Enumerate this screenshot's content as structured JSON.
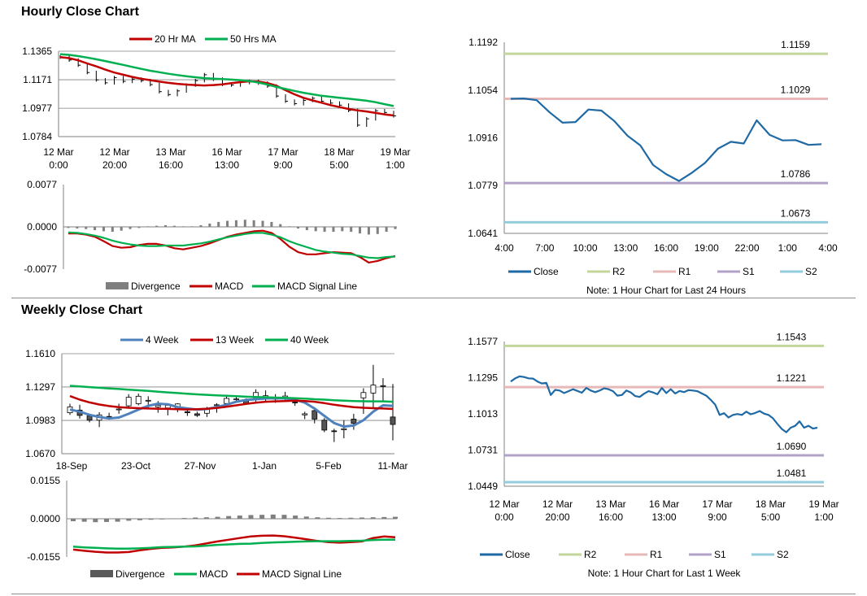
{
  "sections": {
    "hourly_title": "Hourly Close Chart",
    "weekly_title": "Weekly Close Chart"
  },
  "colors": {
    "ma20": "#c00000",
    "ma50": "#00b050",
    "close": "#1f6aa5",
    "r2": "#c3d69b",
    "r1": "#e6b9b8",
    "s1": "#b3a2c7",
    "s2": "#93cddd",
    "divergence": "#7f7f7f",
    "wk4": "#4f81bd",
    "wk13": "#c00000",
    "wk40": "#00b050",
    "candle": "#000000"
  },
  "chart_data": [
    {
      "id": "hourly_price",
      "type": "line",
      "title": "",
      "legend": [
        "20 Hr MA",
        "50 Hrs MA"
      ],
      "legend_position": "top",
      "yticks": [
        "1.1365",
        "1.1171",
        "1.0977",
        "1.0784"
      ],
      "ylim": [
        1.0784,
        1.1365
      ],
      "xtick_labels": [
        [
          "12 Mar",
          "0:00"
        ],
        [
          "12 Mar",
          "20:00"
        ],
        [
          "13 Mar",
          "16:00"
        ],
        [
          "16 Mar",
          "13:00"
        ],
        [
          "17 Mar",
          "9:00"
        ],
        [
          "18 Mar",
          "5:00"
        ],
        [
          "19 Mar",
          "1:00"
        ]
      ],
      "grid": true,
      "series": [
        {
          "name": "20 Hr MA",
          "values": [
            1.1325,
            1.1318,
            1.1303,
            1.1282,
            1.1262,
            1.124,
            1.122,
            1.1205,
            1.119,
            1.1178,
            1.1168,
            1.1158,
            1.115,
            1.1143,
            1.1138,
            1.1135,
            1.1132,
            1.1135,
            1.114,
            1.1148,
            1.1155,
            1.116,
            1.1158,
            1.1148,
            1.113,
            1.11,
            1.1072,
            1.1048,
            1.103,
            1.1015,
            1.0998,
            1.0985,
            1.0972,
            1.0962,
            1.0955,
            1.0945,
            1.0935,
            1.0928
          ]
        },
        {
          "name": "50 Hrs MA",
          "values": [
            1.1345,
            1.134,
            1.1332,
            1.1322,
            1.131,
            1.1298,
            1.1285,
            1.1272,
            1.1258,
            1.1245,
            1.1232,
            1.1222,
            1.1212,
            1.1203,
            1.1195,
            1.1188,
            1.1182,
            1.1178,
            1.1175,
            1.1172,
            1.1168,
            1.1162,
            1.1152,
            1.1138,
            1.1122,
            1.1108,
            1.1095,
            1.1082,
            1.1072,
            1.1062,
            1.1055,
            1.1048,
            1.1042,
            1.1035,
            1.1028,
            1.1018,
            1.1005,
            1.0992
          ]
        },
        {
          "name": "Close",
          "values": [
            1.1325,
            1.1305,
            1.127,
            1.122,
            1.117,
            1.115,
            1.1185,
            1.116,
            1.1175,
            1.1165,
            1.1138,
            1.109,
            1.107,
            1.1095,
            1.1135,
            1.1165,
            1.1205,
            1.1175,
            1.114,
            1.1135,
            1.1152,
            1.116,
            1.1148,
            1.1128,
            1.106,
            1.1025,
            1.1008,
            1.103,
            1.1045,
            1.1025,
            1.1012,
            1.0998,
            1.0962,
            1.0862,
            1.0905,
            1.096,
            1.0948,
            1.0925
          ]
        }
      ]
    },
    {
      "id": "hourly_macd",
      "type": "line",
      "legend": [
        "Divergence",
        "MACD",
        "MACD Signal Line"
      ],
      "legend_position": "bottom",
      "yticks": [
        "0.0077",
        "0.0000",
        "-0.0077"
      ],
      "ylim": [
        -0.0077,
        0.0077
      ],
      "series": [
        {
          "name": "Divergence",
          "values": [
            -0.0002,
            -0.0003,
            -0.0004,
            -0.0006,
            -0.0008,
            -0.0009,
            -0.0007,
            -0.0004,
            -0.0002,
            0.0001,
            0.0002,
            0.0003,
            0.0002,
            0.0001,
            0.0001,
            0.0003,
            0.0006,
            0.0009,
            0.0011,
            0.0012,
            0.0013,
            0.0012,
            0.0011,
            0.0009,
            0.0005,
            0.0001,
            -0.0003,
            -0.0006,
            -0.0008,
            -0.0009,
            -0.0009,
            -0.0008,
            -0.0009,
            -0.0012,
            -0.0014,
            -0.0013,
            -0.0009,
            -0.0004
          ]
        },
        {
          "name": "MACD",
          "values": [
            -0.0012,
            -0.0012,
            -0.0014,
            -0.0018,
            -0.0026,
            -0.0035,
            -0.0038,
            -0.0037,
            -0.0033,
            -0.0031,
            -0.0031,
            -0.0034,
            -0.0039,
            -0.0041,
            -0.0038,
            -0.0035,
            -0.003,
            -0.0024,
            -0.0018,
            -0.0014,
            -0.0011,
            -0.0008,
            -0.0007,
            -0.0011,
            -0.0022,
            -0.0036,
            -0.0046,
            -0.005,
            -0.005,
            -0.0048,
            -0.0046,
            -0.0047,
            -0.0048,
            -0.0055,
            -0.0065,
            -0.0062,
            -0.0057,
            -0.0053
          ]
        },
        {
          "name": "MACD Signal Line",
          "values": [
            -0.001,
            -0.0011,
            -0.0013,
            -0.0016,
            -0.002,
            -0.0025,
            -0.0029,
            -0.0032,
            -0.0034,
            -0.0035,
            -0.0035,
            -0.0034,
            -0.0034,
            -0.0034,
            -0.0032,
            -0.003,
            -0.0027,
            -0.0023,
            -0.0019,
            -0.0016,
            -0.0013,
            -0.0011,
            -0.0011,
            -0.0014,
            -0.0019,
            -0.0026,
            -0.0032,
            -0.0037,
            -0.0042,
            -0.0045,
            -0.0047,
            -0.0049,
            -0.005,
            -0.0053,
            -0.0056,
            -0.0057,
            -0.0055,
            -0.0054
          ]
        }
      ]
    },
    {
      "id": "hourly_pivots",
      "type": "line",
      "legend": [
        "Close",
        "R2",
        "R1",
        "S1",
        "S2"
      ],
      "legend_position": "bottom",
      "note": "Note: 1 Hour Chart for Last 24 Hours",
      "yticks": [
        "1.1192",
        "1.1054",
        "1.0916",
        "1.0779",
        "1.0641"
      ],
      "ylim": [
        1.0641,
        1.1192
      ],
      "xtick_labels": [
        "4:00",
        "7:00",
        "10:00",
        "13:00",
        "16:00",
        "19:00",
        "22:00",
        "1:00",
        "4:00"
      ],
      "levels": {
        "R2": 1.1159,
        "R1": 1.1029,
        "S1": 1.0786,
        "S2": 1.0673
      },
      "level_labels": {
        "R2": "1.1159",
        "R1": "1.1029",
        "S1": "1.0786",
        "S2": "1.0673"
      },
      "series": [
        {
          "name": "Close",
          "values": [
            1.1029,
            1.103,
            1.1025,
            1.099,
            1.096,
            1.0962,
            1.0998,
            1.0995,
            1.0965,
            1.0923,
            1.0895,
            1.0838,
            1.0812,
            1.0792,
            1.0816,
            1.0844,
            1.0885,
            1.0905,
            1.09,
            1.0967,
            1.0925,
            1.0909,
            1.091,
            1.0896,
            1.0898
          ]
        }
      ]
    },
    {
      "id": "weekly_price",
      "type": "candlestick+line",
      "legend": [
        "4 Week",
        "13 Week",
        "40 Week"
      ],
      "legend_position": "top",
      "yticks": [
        "1.1610",
        "1.1297",
        "1.0983",
        "1.0670"
      ],
      "ylim": [
        1.067,
        1.161
      ],
      "xtick_labels": [
        "18-Sep",
        "23-Oct",
        "27-Nov",
        "1-Jan",
        "5-Feb",
        "11-Mar"
      ],
      "grid": true,
      "candles": [
        [
          1.1055,
          1.111,
          1.1035,
          1.114
        ],
        [
          1.108,
          1.103,
          1.1,
          1.113
        ],
        [
          1.1025,
          1.0985,
          1.0965,
          1.1045
        ],
        [
          1.0985,
          1.1035,
          1.092,
          1.106
        ],
        [
          1.102,
          1.1018,
          1.099,
          1.1055
        ],
        [
          1.109,
          1.109,
          1.1045,
          1.114
        ],
        [
          1.112,
          1.12,
          1.1105,
          1.123
        ],
        [
          1.114,
          1.121,
          1.1125,
          1.1235
        ],
        [
          1.117,
          1.1172,
          1.11,
          1.121
        ],
        [
          1.111,
          1.1125,
          1.1055,
          1.1165
        ],
        [
          1.11,
          1.1125,
          1.103,
          1.113
        ],
        [
          1.1095,
          1.1138,
          1.106,
          1.1145
        ],
        [
          1.1065,
          1.1055,
          1.1025,
          1.1095
        ],
        [
          1.1045,
          1.103,
          1.1015,
          1.1065
        ],
        [
          1.105,
          1.1095,
          1.1015,
          1.111
        ],
        [
          1.1125,
          1.113,
          1.1055,
          1.1145
        ],
        [
          1.1142,
          1.119,
          1.112,
          1.1225
        ],
        [
          1.118,
          1.1185,
          1.1148,
          1.122
        ],
        [
          1.117,
          1.114,
          1.113,
          1.119
        ],
        [
          1.1195,
          1.1245,
          1.116,
          1.1275
        ],
        [
          1.12,
          1.1215,
          1.116,
          1.1265
        ],
        [
          1.1195,
          1.1182,
          1.1148,
          1.123
        ],
        [
          1.1195,
          1.1212,
          1.117,
          1.1252
        ],
        [
          1.1155,
          1.115,
          1.112,
          1.1195
        ],
        [
          1.1035,
          1.1045,
          1.0995,
          1.1065
        ],
        [
          1.1075,
          1.0995,
          1.0955,
          1.11
        ],
        [
          1.0985,
          1.0892,
          1.0872,
          1.1005
        ],
        [
          1.0885,
          1.088,
          1.078,
          1.0905
        ],
        [
          1.0895,
          1.0905,
          1.0815,
          1.0985
        ],
        [
          1.0995,
          1.0955,
          1.0895,
          1.1045
        ],
        [
          1.1195,
          1.1245,
          1.1045,
          1.1285
        ],
        [
          1.124,
          1.1315,
          1.109,
          1.1505
        ],
        [
          1.131,
          1.131,
          1.117,
          1.138
        ],
        [
          1.1015,
          1.0945,
          1.0795,
          1.1325
        ]
      ],
      "series": [
        {
          "name": "4 Week",
          "values": [
            1.1085,
            1.1065,
            1.1035,
            1.1015,
            1.1002,
            1.101,
            1.1045,
            1.1085,
            1.112,
            1.114,
            1.1135,
            1.1108,
            1.1095,
            1.1085,
            1.109,
            1.1108,
            1.113,
            1.1158,
            1.1175,
            1.1182,
            1.119,
            1.1192,
            1.119,
            1.1178,
            1.115,
            1.1095,
            1.1025,
            1.0958,
            1.0925,
            1.0935,
            1.0985,
            1.1065,
            1.1125,
            1.112
          ]
        },
        {
          "name": "13 Week",
          "values": [
            1.1212,
            1.1178,
            1.1152,
            1.1132,
            1.1118,
            1.1108,
            1.1102,
            1.1098,
            1.1095,
            1.1093,
            1.1091,
            1.1088,
            1.1086,
            1.1088,
            1.1092,
            1.11,
            1.1112,
            1.1125,
            1.1138,
            1.115,
            1.1158,
            1.1162,
            1.1165,
            1.1168,
            1.1165,
            1.1158,
            1.1145,
            1.113,
            1.1118,
            1.1108,
            1.1102,
            1.1098,
            1.1095,
            1.109
          ]
        },
        {
          "name": "40 Week",
          "values": [
            1.1308,
            1.1302,
            1.1296,
            1.129,
            1.1284,
            1.1278,
            1.1272,
            1.1266,
            1.126,
            1.1253,
            1.1246,
            1.124,
            1.1234,
            1.1228,
            1.1223,
            1.1218,
            1.1214,
            1.121,
            1.1206,
            1.1203,
            1.12,
            1.1197,
            1.1195,
            1.1192,
            1.1188,
            1.1182,
            1.1178,
            1.1172,
            1.1168,
            1.1165,
            1.1163,
            1.1162,
            1.1162,
            1.1158
          ]
        }
      ]
    },
    {
      "id": "weekly_macd",
      "type": "line",
      "legend": [
        "Divergence",
        "MACD",
        "MACD Signal Line"
      ],
      "legend_position": "bottom",
      "yticks": [
        "0.0155",
        "0.0000",
        "-0.0155"
      ],
      "ylim": [
        -0.0155,
        0.0155
      ],
      "series": [
        {
          "name": "Divergence",
          "values": [
            -0.001,
            -0.0012,
            -0.0014,
            -0.0013,
            -0.0012,
            -0.0008,
            -0.0006,
            -0.0004,
            -0.0002,
            0.0001,
            0.0003,
            0.0005,
            0.0006,
            0.0008,
            0.0011,
            0.0013,
            0.0015,
            0.0016,
            0.0017,
            0.0016,
            0.0013,
            0.0009,
            0.0006,
            0.0004,
            0.0003,
            0.0004,
            0.0005,
            0.0006,
            0.0007,
            0.0008
          ]
        },
        {
          "name": "MACD",
          "values": [
            -0.0125,
            -0.013,
            -0.0134,
            -0.0137,
            -0.0137,
            -0.0135,
            -0.0128,
            -0.0122,
            -0.0118,
            -0.0116,
            -0.0113,
            -0.0108,
            -0.01,
            -0.0092,
            -0.0085,
            -0.0078,
            -0.0072,
            -0.0069,
            -0.0068,
            -0.0071,
            -0.0077,
            -0.0083,
            -0.009,
            -0.0095,
            -0.0097,
            -0.0095,
            -0.0092,
            -0.0078,
            -0.0072,
            -0.0075
          ]
        },
        {
          "name": "MACD Signal Line",
          "values": [
            -0.0113,
            -0.0116,
            -0.0118,
            -0.012,
            -0.0121,
            -0.0121,
            -0.012,
            -0.0118,
            -0.0115,
            -0.0114,
            -0.0113,
            -0.0112,
            -0.0109,
            -0.0106,
            -0.0104,
            -0.0102,
            -0.0101,
            -0.0098,
            -0.0096,
            -0.0095,
            -0.0093,
            -0.0092,
            -0.0091,
            -0.0091,
            -0.0091,
            -0.009,
            -0.0089,
            -0.0086,
            -0.0085,
            -0.0085
          ]
        }
      ]
    },
    {
      "id": "weekly_pivots",
      "type": "line",
      "legend": [
        "Close",
        "R2",
        "R1",
        "S1",
        "S2"
      ],
      "legend_position": "bottom",
      "note": "Note: 1 Hour Chart for Last 1 Week",
      "yticks": [
        "1.1577",
        "1.1295",
        "1.1013",
        "1.0731",
        "1.0449"
      ],
      "ylim": [
        1.0449,
        1.1577
      ],
      "xtick_labels": [
        [
          "12 Mar",
          "0:00"
        ],
        [
          "12 Mar",
          "20:00"
        ],
        [
          "13 Mar",
          "16:00"
        ],
        [
          "16 Mar",
          "13:00"
        ],
        [
          "17 Mar",
          "9:00"
        ],
        [
          "18 Mar",
          "5:00"
        ],
        [
          "19 Mar",
          "1:00"
        ]
      ],
      "levels": {
        "R2": 1.1543,
        "R1": 1.1221,
        "S1": 1.069,
        "S2": 1.0481
      },
      "level_labels": {
        "R2": "1.1543",
        "R1": "1.1221",
        "S1": "1.0690",
        "S2": "1.0481"
      },
      "series": [
        {
          "name": "Close",
          "values": [
            1.1265,
            1.129,
            1.1305,
            1.13,
            1.129,
            1.1288,
            1.1265,
            1.125,
            1.1255,
            1.116,
            1.12,
            1.1195,
            1.1175,
            1.119,
            1.1205,
            1.1192,
            1.1178,
            1.1215,
            1.1195,
            1.1182,
            1.1195,
            1.1212,
            1.1205,
            1.119,
            1.1155,
            1.116,
            1.1195,
            1.118,
            1.1152,
            1.1145,
            1.117,
            1.119,
            1.118,
            1.1166,
            1.1215,
            1.1175,
            1.1205,
            1.1172,
            1.1192,
            1.1182,
            1.1198,
            1.1195,
            1.119,
            1.1172,
            1.1155,
            1.1122,
            1.1085,
            1.1005,
            1.1018,
            1.0985,
            1.1005,
            1.1012,
            1.1005,
            1.103,
            1.101,
            1.102,
            1.1035,
            1.1015,
            1.1005,
            1.0978,
            1.0935,
            1.0895,
            1.087,
            1.0905,
            1.092,
            1.0955,
            1.0905,
            1.092,
            1.0898,
            1.0905
          ]
        }
      ]
    }
  ]
}
